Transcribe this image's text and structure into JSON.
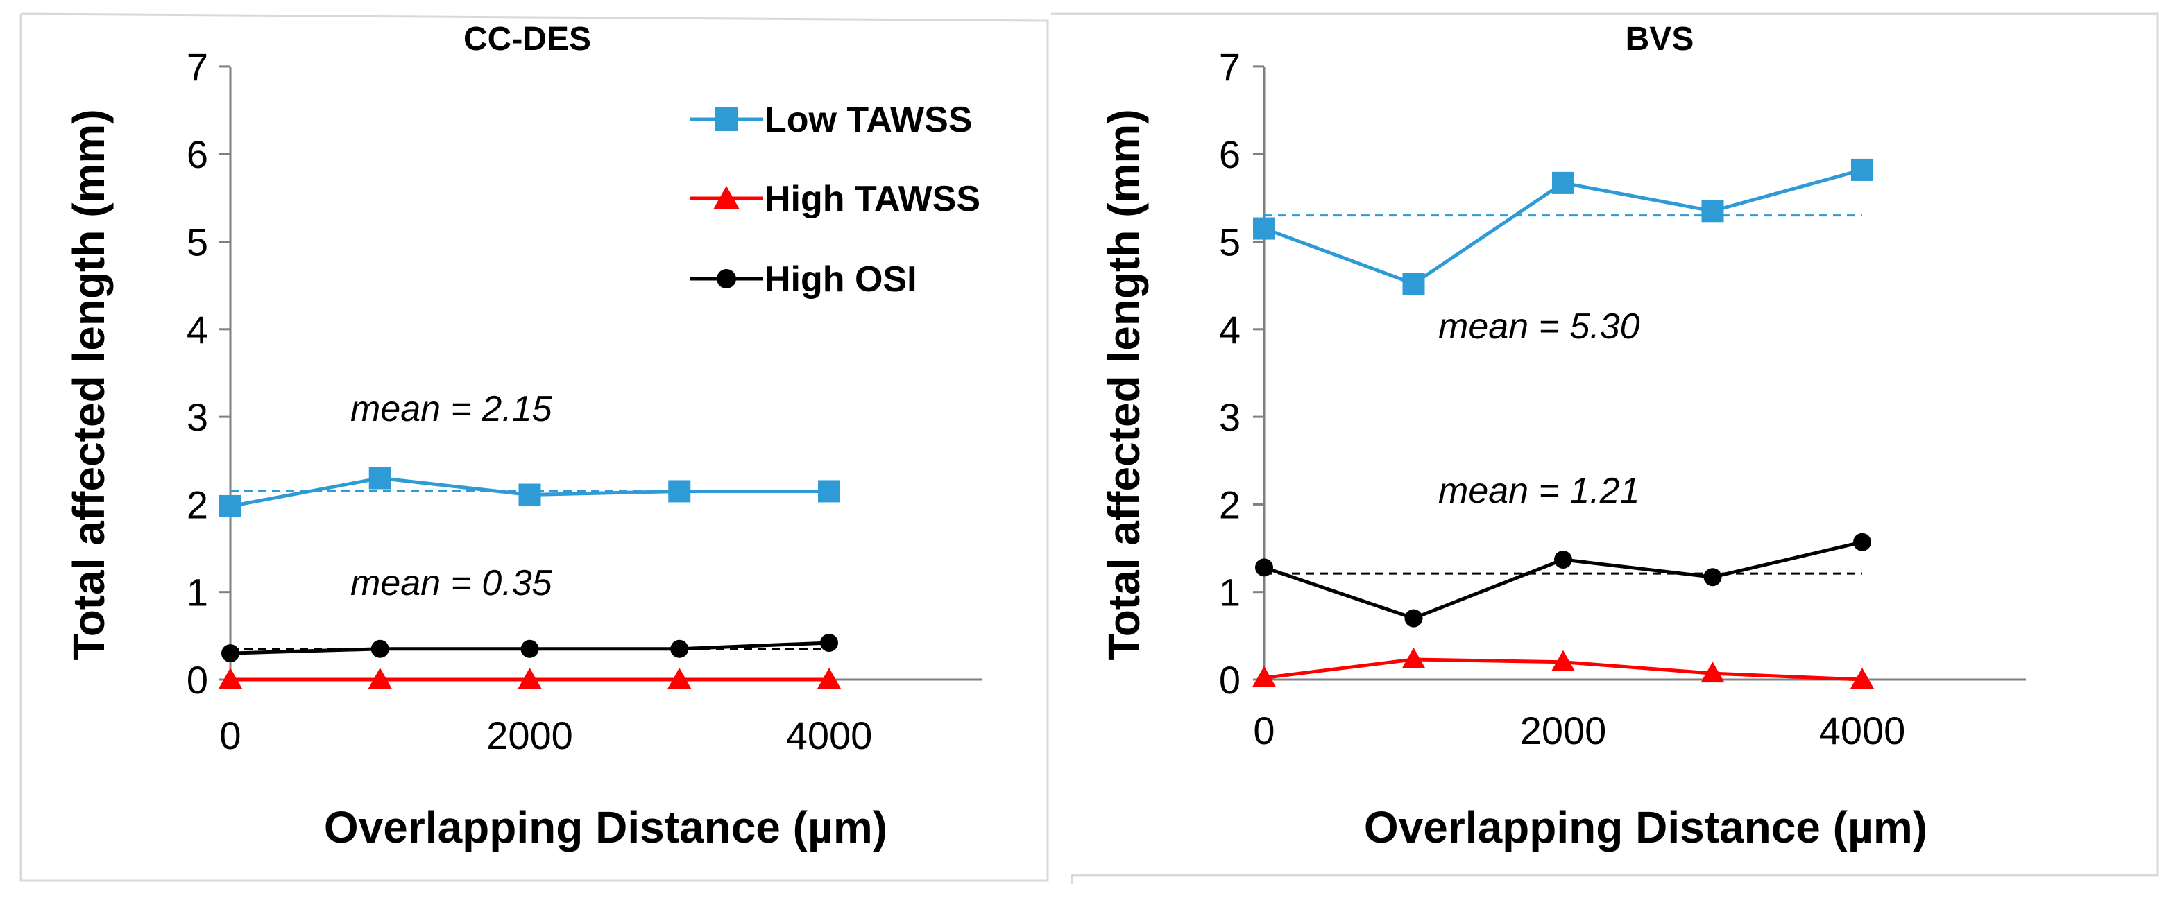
{
  "chart_data": [
    {
      "type": "line",
      "title": "CC-DES",
      "xlabel": "Overlapping Distance (µm)",
      "ylabel": "Total affected length (mm)",
      "xlim": [
        0,
        5000
      ],
      "ylim": [
        0,
        7
      ],
      "x_ticks": [
        "0",
        "2000",
        "4000"
      ],
      "y_ticks": [
        "0",
        "1",
        "2",
        "3",
        "4",
        "5",
        "6",
        "7"
      ],
      "x": [
        0,
        1000,
        2000,
        3000,
        4000
      ],
      "series": [
        {
          "name": "Low TAWSS",
          "color": "#2e9bd6",
          "marker": "square",
          "values": [
            1.98,
            2.3,
            2.11,
            2.15,
            2.15
          ],
          "mean": 2.15
        },
        {
          "name": "High TAWSS",
          "color": "#ff0000",
          "marker": "triangle",
          "values": [
            0,
            0,
            0,
            0,
            0
          ]
        },
        {
          "name": "High OSI",
          "color": "#000000",
          "marker": "circle",
          "values": [
            0.3,
            0.35,
            0.35,
            0.35,
            0.42
          ],
          "mean": 0.35
        }
      ],
      "annotations": [
        "mean = 2.15",
        "mean = 0.35"
      ],
      "legend": "top-right",
      "grid": false
    },
    {
      "type": "line",
      "title": "BVS",
      "xlabel": "Overlapping Distance (µm)",
      "ylabel": "Total affected length (mm)",
      "xlim": [
        0,
        5000
      ],
      "ylim": [
        0,
        7
      ],
      "x_ticks": [
        "0",
        "2000",
        "4000"
      ],
      "y_ticks": [
        "0",
        "1",
        "2",
        "3",
        "4",
        "5",
        "6",
        "7"
      ],
      "x": [
        0,
        1000,
        2000,
        3000,
        4000
      ],
      "series": [
        {
          "name": "Low TAWSS",
          "color": "#2e9bd6",
          "marker": "square",
          "values": [
            5.15,
            4.52,
            5.67,
            5.35,
            5.82
          ],
          "mean": 5.3
        },
        {
          "name": "High TAWSS",
          "color": "#ff0000",
          "marker": "triangle",
          "values": [
            0.02,
            0.23,
            0.2,
            0.07,
            0.0
          ]
        },
        {
          "name": "High OSI",
          "color": "#000000",
          "marker": "circle",
          "values": [
            1.28,
            0.7,
            1.37,
            1.17,
            1.57
          ],
          "mean": 1.21
        }
      ],
      "annotations": [
        "mean = 5.30",
        "mean = 1.21"
      ],
      "legend": "none",
      "grid": false
    }
  ]
}
